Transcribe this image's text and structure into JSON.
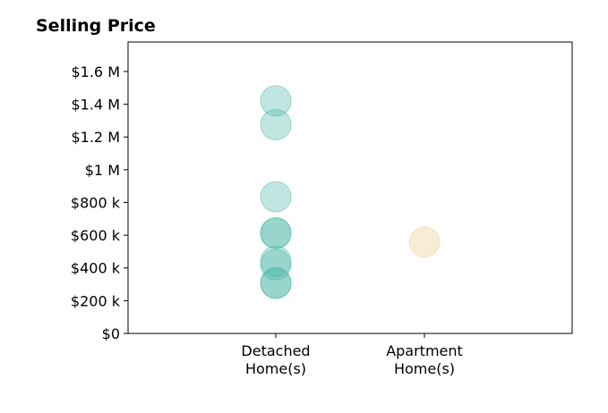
{
  "chart_data": {
    "type": "scatter",
    "title": "Selling Price",
    "xlabel": "",
    "ylabel": "",
    "categories": [
      "Detached\nHome(s)",
      "Apartment\nHome(s)"
    ],
    "ylim": [
      0,
      1780000
    ],
    "yticks": [
      {
        "value": 0,
        "label": "$0"
      },
      {
        "value": 200000,
        "label": "$200 k"
      },
      {
        "value": 400000,
        "label": "$400 k"
      },
      {
        "value": 600000,
        "label": "$600 k"
      },
      {
        "value": 800000,
        "label": "$800 k"
      },
      {
        "value": 1000000,
        "label": "$1 M"
      },
      {
        "value": 1200000,
        "label": "$1.2 M"
      },
      {
        "value": 1400000,
        "label": "$1.4 M"
      },
      {
        "value": 1600000,
        "label": "$1.6 M"
      }
    ],
    "series": [
      {
        "category": "Detached\nHome(s)",
        "color": "#4db6a8",
        "opacity": 0.35,
        "values": [
          1420000,
          1275000,
          835000,
          615000,
          610000,
          440000,
          420000,
          310000,
          305000
        ]
      },
      {
        "category": "Apartment\nHome(s)",
        "color": "#f2ddb0",
        "opacity": 0.55,
        "values": [
          558000
        ]
      }
    ],
    "grid": false,
    "legend": "none"
  }
}
